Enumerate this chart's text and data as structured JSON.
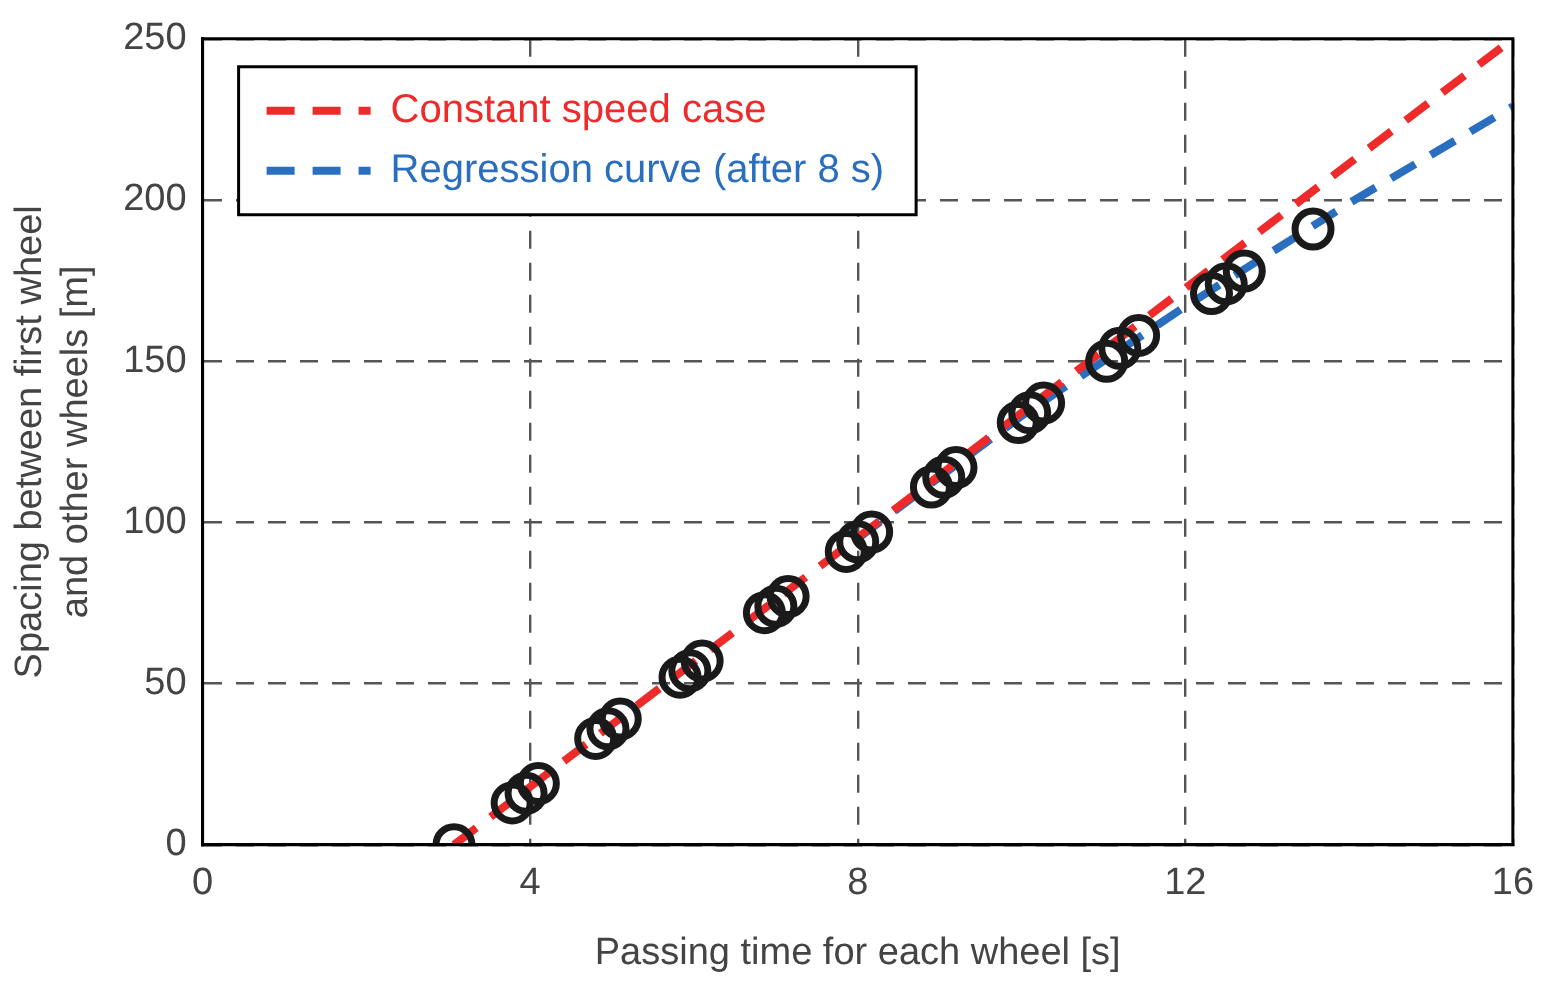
{
  "chart_data": {
    "type": "scatter",
    "xlabel": "Passing time for each wheel [s]",
    "ylabel": "Spacing between first wheel\nand other wheels [m]",
    "xlim": [
      0,
      16
    ],
    "xticks": [
      0,
      4,
      8,
      12,
      16
    ],
    "ylim": [
      0,
      250
    ],
    "yticks": [
      0,
      50,
      100,
      150,
      200,
      250
    ],
    "grid": true,
    "legend": "top left",
    "series": [
      {
        "type": "line",
        "name": "Constant speed case",
        "color": "#ee2a2a",
        "line_style": "dashed",
        "marker": "none",
        "x": [
          3.07,
          16
        ],
        "values": [
          0,
          250
        ]
      },
      {
        "type": "line",
        "name": "Regression curve (after 8 s)",
        "color": "#2a6fbf",
        "line_style": "dashed",
        "marker": "none",
        "x": [
          8,
          10,
          12,
          14,
          16
        ],
        "values": [
          95,
          133,
          167,
          199,
          229
        ]
      },
      {
        "color": "#1a1a1a",
        "marker": "circle",
        "x": [
          3.07,
          3.78,
          3.95,
          4.1,
          4.8,
          4.95,
          5.1,
          5.83,
          5.95,
          6.1,
          6.86,
          7.0,
          7.15,
          7.86,
          8.0,
          8.17,
          8.9,
          9.05,
          9.2,
          9.96,
          10.1,
          10.27,
          11.04,
          11.2,
          11.43,
          12.32,
          12.5,
          12.72,
          13.56
        ],
        "values": [
          0,
          13,
          16,
          19,
          33,
          36,
          39,
          52,
          54,
          57,
          72,
          74,
          77,
          91,
          94,
          97,
          111,
          114,
          117,
          131,
          134,
          137,
          150,
          154,
          158,
          171,
          174,
          178,
          191
        ]
      }
    ]
  }
}
